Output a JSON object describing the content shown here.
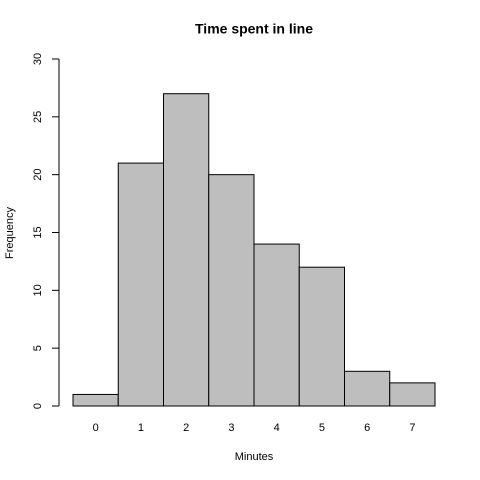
{
  "chart_data": {
    "type": "bar",
    "title": "Time spent in line",
    "x_label": "Minutes",
    "y_label": "Frequency",
    "categories": [
      "0",
      "1",
      "2",
      "3",
      "4",
      "5",
      "6",
      "7"
    ],
    "values": [
      1,
      21,
      27,
      20,
      14,
      12,
      3,
      2
    ],
    "color": "#bebebe",
    "ylim": [
      0,
      30
    ],
    "yticks": [
      0,
      5,
      10,
      15,
      20,
      25,
      30
    ]
  }
}
